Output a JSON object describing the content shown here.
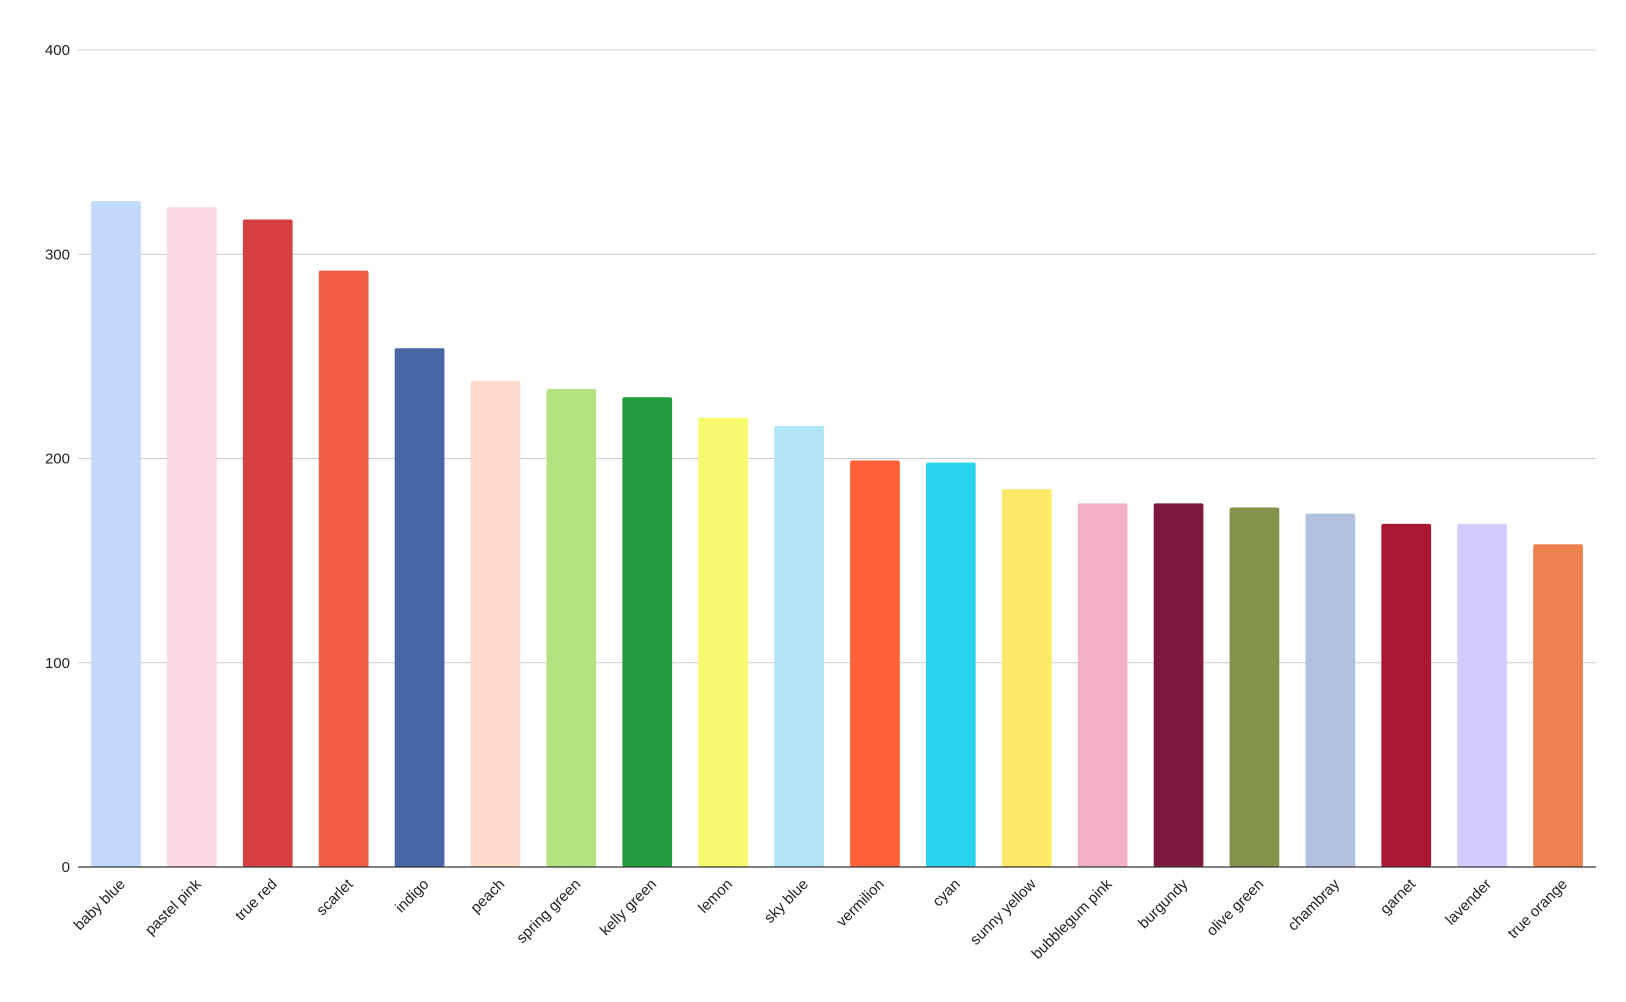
{
  "chart_data": {
    "type": "bar",
    "title": "",
    "xlabel": "",
    "ylabel": "",
    "ylim": [
      0,
      400
    ],
    "yticks": [
      0,
      100,
      200,
      300,
      400
    ],
    "grid": true,
    "legend": "none",
    "categories": [
      "baby blue",
      "pastel pink",
      "true red",
      "scarlet",
      "indigo",
      "peach",
      "spring green",
      "kelly green",
      "lemon",
      "sky blue",
      "vermilion",
      "cyan",
      "sunny yellow",
      "bubblegum pink",
      "burgundy",
      "olive green",
      "chambray",
      "garnet",
      "lavender",
      "true orange"
    ],
    "values": [
      326,
      323,
      317,
      292,
      254,
      238,
      234,
      230,
      220,
      216,
      199,
      198,
      185,
      178,
      178,
      176,
      173,
      168,
      168,
      158
    ],
    "colors": [
      "#c2d9fd",
      "#f9d9e5",
      "#d64043",
      "#f25c45",
      "#4667a3",
      "#ffd9c9",
      "#b5e381",
      "#229c3c",
      "#f9f96f",
      "#b1e4f7",
      "#ff6038",
      "#29d3eb",
      "#fce96a",
      "#f2b1c6",
      "#7f183e",
      "#84944b",
      "#b1c2e0",
      "#a81833",
      "#d5cbfc",
      "#ed814f"
    ]
  }
}
